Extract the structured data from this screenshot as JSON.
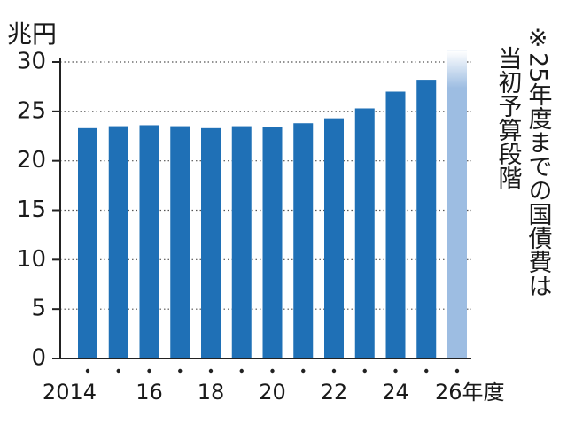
{
  "chart_data": {
    "type": "bar",
    "y_label": "兆円",
    "annotation": [
      "※25年度までの国債費は",
      "当初予算段階"
    ],
    "categories": [
      "2014",
      null,
      "16",
      null,
      "18",
      null,
      "20",
      null,
      "22",
      null,
      "24",
      null,
      "26年度"
    ],
    "values": [
      23.3,
      23.5,
      23.6,
      23.5,
      23.3,
      23.5,
      23.4,
      23.8,
      24.3,
      25.3,
      27.0,
      28.2,
      31.1
    ],
    "colors": [
      "#1f70b6",
      "#1f70b6",
      "#1f70b6",
      "#1f70b6",
      "#1f70b6",
      "#1f70b6",
      "#1f70b6",
      "#1f70b6",
      "#1f70b6",
      "#1f70b6",
      "#1f70b6",
      "#1f70b6",
      "#9dbde2"
    ],
    "ylim": [
      0,
      30
    ],
    "yticks": [
      0,
      5,
      10,
      15,
      20,
      25,
      30
    ],
    "grid": true
  }
}
